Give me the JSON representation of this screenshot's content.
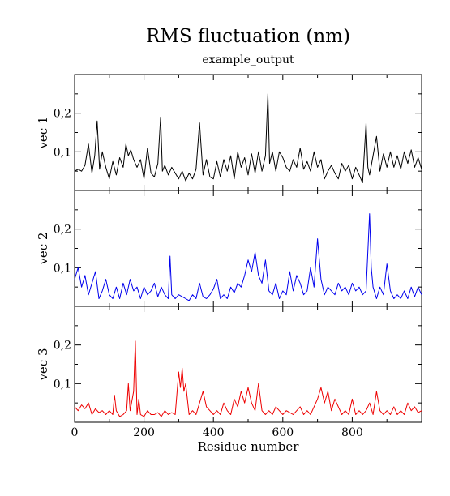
{
  "chart_data": {
    "type": "line",
    "title": "RMS fluctuation (nm)",
    "subtitle": "example_output",
    "xlabel": "Residue number",
    "xlim": [
      0,
      1000
    ],
    "x_ticks": [
      0,
      200,
      400,
      600,
      800
    ],
    "x_tick_labels": [
      "0",
      "200",
      "400",
      "600",
      "800"
    ],
    "grid": false,
    "legend": "none",
    "panels": [
      {
        "ylabel": "vec 1",
        "ylim": [
          0,
          0.3
        ],
        "y_ticks": [
          0.1,
          0.2
        ],
        "y_tick_labels": [
          "0,1",
          "0,2"
        ],
        "color": "#000000",
        "x": [
          0,
          10,
          20,
          30,
          40,
          50,
          58,
          65,
          72,
          80,
          90,
          100,
          110,
          120,
          130,
          140,
          148,
          155,
          162,
          170,
          180,
          190,
          200,
          210,
          220,
          230,
          240,
          248,
          253,
          260,
          270,
          280,
          290,
          300,
          310,
          320,
          330,
          340,
          350,
          360,
          370,
          380,
          390,
          400,
          410,
          420,
          430,
          440,
          450,
          460,
          470,
          480,
          490,
          500,
          510,
          520,
          530,
          540,
          550,
          557,
          562,
          570,
          580,
          590,
          600,
          610,
          620,
          630,
          640,
          650,
          660,
          670,
          680,
          690,
          700,
          710,
          720,
          730,
          740,
          750,
          760,
          770,
          780,
          790,
          800,
          810,
          820,
          830,
          840,
          845,
          850,
          860,
          870,
          880,
          890,
          900,
          910,
          920,
          930,
          940,
          950,
          960,
          970,
          980,
          990,
          1000
        ],
        "values": [
          0.05,
          0.055,
          0.05,
          0.065,
          0.12,
          0.045,
          0.09,
          0.18,
          0.055,
          0.1,
          0.06,
          0.03,
          0.075,
          0.04,
          0.085,
          0.06,
          0.12,
          0.09,
          0.105,
          0.08,
          0.06,
          0.08,
          0.03,
          0.11,
          0.045,
          0.035,
          0.07,
          0.19,
          0.05,
          0.065,
          0.04,
          0.06,
          0.045,
          0.03,
          0.05,
          0.025,
          0.045,
          0.03,
          0.055,
          0.175,
          0.04,
          0.08,
          0.035,
          0.03,
          0.075,
          0.035,
          0.08,
          0.05,
          0.09,
          0.03,
          0.1,
          0.06,
          0.085,
          0.04,
          0.095,
          0.045,
          0.1,
          0.05,
          0.09,
          0.25,
          0.07,
          0.1,
          0.05,
          0.1,
          0.085,
          0.06,
          0.05,
          0.08,
          0.06,
          0.11,
          0.055,
          0.075,
          0.05,
          0.1,
          0.06,
          0.08,
          0.03,
          0.05,
          0.065,
          0.045,
          0.03,
          0.07,
          0.05,
          0.065,
          0.03,
          0.06,
          0.04,
          0.02,
          0.175,
          0.06,
          0.04,
          0.09,
          0.14,
          0.05,
          0.095,
          0.06,
          0.1,
          0.06,
          0.09,
          0.055,
          0.1,
          0.07,
          0.105,
          0.06,
          0.085,
          0.055
        ]
      },
      {
        "ylabel": "vec 2",
        "ylim": [
          0,
          0.3
        ],
        "y_ticks": [
          0.1,
          0.2
        ],
        "y_tick_labels": [
          "0,1",
          "0,2"
        ],
        "color": "#0000ee",
        "x": [
          0,
          10,
          20,
          30,
          40,
          50,
          60,
          70,
          80,
          90,
          100,
          110,
          120,
          130,
          140,
          150,
          160,
          170,
          180,
          190,
          200,
          210,
          220,
          230,
          240,
          250,
          260,
          270,
          275,
          280,
          290,
          300,
          310,
          320,
          330,
          340,
          350,
          360,
          370,
          380,
          390,
          400,
          410,
          420,
          430,
          440,
          450,
          460,
          470,
          480,
          490,
          500,
          510,
          520,
          530,
          540,
          550,
          560,
          570,
          580,
          590,
          600,
          610,
          620,
          630,
          640,
          650,
          660,
          670,
          680,
          690,
          700,
          710,
          720,
          730,
          740,
          750,
          760,
          770,
          780,
          790,
          800,
          810,
          820,
          830,
          840,
          850,
          855,
          860,
          870,
          880,
          890,
          900,
          910,
          920,
          930,
          940,
          950,
          960,
          970,
          980,
          990,
          1000
        ],
        "values": [
          0.07,
          0.1,
          0.05,
          0.08,
          0.03,
          0.06,
          0.09,
          0.02,
          0.04,
          0.07,
          0.03,
          0.02,
          0.05,
          0.02,
          0.06,
          0.03,
          0.07,
          0.04,
          0.05,
          0.02,
          0.05,
          0.03,
          0.04,
          0.06,
          0.025,
          0.05,
          0.03,
          0.02,
          0.13,
          0.03,
          0.02,
          0.03,
          0.025,
          0.02,
          0.015,
          0.03,
          0.02,
          0.06,
          0.025,
          0.02,
          0.03,
          0.045,
          0.07,
          0.02,
          0.03,
          0.02,
          0.05,
          0.035,
          0.06,
          0.05,
          0.08,
          0.12,
          0.09,
          0.14,
          0.08,
          0.06,
          0.12,
          0.04,
          0.03,
          0.06,
          0.02,
          0.04,
          0.03,
          0.09,
          0.04,
          0.08,
          0.06,
          0.03,
          0.04,
          0.1,
          0.05,
          0.175,
          0.07,
          0.03,
          0.05,
          0.04,
          0.03,
          0.06,
          0.04,
          0.05,
          0.03,
          0.06,
          0.04,
          0.05,
          0.03,
          0.04,
          0.24,
          0.1,
          0.05,
          0.02,
          0.05,
          0.03,
          0.11,
          0.04,
          0.02,
          0.03,
          0.02,
          0.04,
          0.02,
          0.05,
          0.025,
          0.05,
          0.03
        ]
      },
      {
        "ylabel": "vec 3",
        "ylim": [
          0,
          0.3
        ],
        "y_ticks": [
          0.1,
          0.2
        ],
        "y_tick_labels": [
          "0,1",
          "0,2"
        ],
        "color": "#ee0000",
        "x": [
          0,
          10,
          20,
          30,
          40,
          50,
          60,
          70,
          80,
          90,
          100,
          110,
          115,
          120,
          130,
          140,
          150,
          155,
          160,
          170,
          175,
          180,
          185,
          190,
          200,
          210,
          220,
          230,
          240,
          250,
          260,
          270,
          280,
          290,
          300,
          305,
          310,
          315,
          320,
          330,
          340,
          350,
          360,
          370,
          380,
          390,
          400,
          410,
          420,
          430,
          440,
          450,
          460,
          470,
          480,
          490,
          500,
          510,
          520,
          530,
          540,
          550,
          560,
          570,
          580,
          590,
          600,
          610,
          620,
          630,
          640,
          650,
          660,
          670,
          680,
          690,
          700,
          710,
          720,
          730,
          740,
          750,
          760,
          770,
          780,
          790,
          800,
          810,
          820,
          830,
          840,
          850,
          860,
          870,
          880,
          890,
          900,
          910,
          920,
          930,
          940,
          950,
          960,
          970,
          980,
          990,
          1000
        ],
        "values": [
          0.04,
          0.03,
          0.045,
          0.035,
          0.05,
          0.02,
          0.035,
          0.025,
          0.03,
          0.02,
          0.03,
          0.02,
          0.07,
          0.03,
          0.015,
          0.02,
          0.03,
          0.1,
          0.03,
          0.08,
          0.21,
          0.02,
          0.06,
          0.02,
          0.015,
          0.03,
          0.02,
          0.02,
          0.025,
          0.015,
          0.03,
          0.02,
          0.025,
          0.02,
          0.13,
          0.09,
          0.14,
          0.08,
          0.1,
          0.02,
          0.03,
          0.02,
          0.05,
          0.08,
          0.04,
          0.03,
          0.02,
          0.03,
          0.02,
          0.05,
          0.03,
          0.02,
          0.06,
          0.04,
          0.08,
          0.05,
          0.09,
          0.05,
          0.03,
          0.1,
          0.03,
          0.02,
          0.03,
          0.02,
          0.04,
          0.03,
          0.02,
          0.03,
          0.025,
          0.02,
          0.03,
          0.04,
          0.02,
          0.03,
          0.02,
          0.04,
          0.06,
          0.09,
          0.05,
          0.08,
          0.03,
          0.06,
          0.04,
          0.02,
          0.03,
          0.02,
          0.06,
          0.02,
          0.03,
          0.02,
          0.03,
          0.05,
          0.02,
          0.08,
          0.03,
          0.02,
          0.03,
          0.02,
          0.04,
          0.02,
          0.03,
          0.02,
          0.05,
          0.03,
          0.04,
          0.025,
          0.03
        ]
      }
    ]
  }
}
